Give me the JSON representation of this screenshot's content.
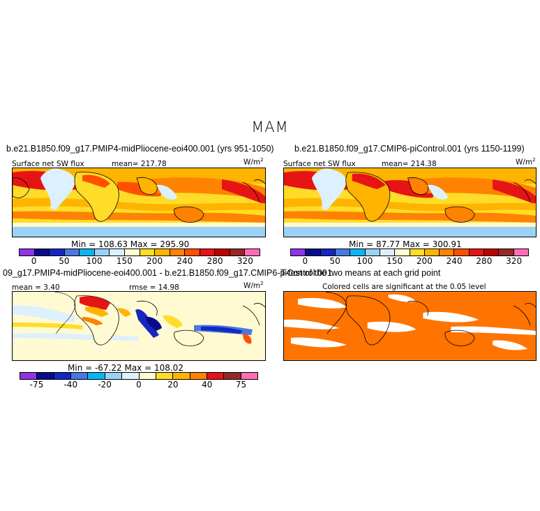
{
  "chart_data": [
    {
      "type": "heatmap",
      "figure_title": "MAM",
      "title": "b.e21.B1850.f09_g17.PMIP4-midPliocene-eoi400.001 (yrs 951-1050)",
      "left_label": "Surface net SW flux",
      "mean_label": "mean= 217.78",
      "units": "W/m",
      "units_sup": "2",
      "minmax_label": "Min = 108.63 Max = 295.90",
      "colorbar_ticks": [
        "0",
        "50",
        "100",
        "150",
        "200",
        "240",
        "280",
        "320"
      ],
      "colorbar_colors": [
        "#8f35e6",
        "#0a0a8c",
        "#1428c0",
        "#4a78e0",
        "#0ab4f0",
        "#9ad2f5",
        "#dcf0ff",
        "#fffad2",
        "#ffdc28",
        "#ffb400",
        "#ff8200",
        "#ff5000",
        "#e61414",
        "#be0000",
        "#962828",
        "#ff6eb4"
      ]
    },
    {
      "type": "heatmap",
      "title": "b.e21.B1850.f09_g17.CMIP6-piControl.001 (yrs 1150-1199)",
      "left_label": "Surface net SW flux",
      "mean_label": "mean= 214.38",
      "units": "W/m",
      "units_sup": "2",
      "minmax_label": "Min =  87.77 Max = 300.91",
      "colorbar_ticks": [
        "0",
        "50",
        "100",
        "150",
        "200",
        "240",
        "280",
        "320"
      ],
      "colorbar_colors": [
        "#8f35e6",
        "#0a0a8c",
        "#1428c0",
        "#4a78e0",
        "#0ab4f0",
        "#9ad2f5",
        "#dcf0ff",
        "#fffad2",
        "#ffdc28",
        "#ffb400",
        "#ff8200",
        "#ff5000",
        "#e61414",
        "#be0000",
        "#962828",
        "#ff6eb4"
      ]
    },
    {
      "type": "heatmap",
      "title": "09_g17.PMIP4-midPliocene-eoi400.001 - b.e21.B1850.f09_g17.CMIP6-piControl.001",
      "mean_label": "mean =   3.40",
      "rmse_label": "rmse =  14.98",
      "units": "W/m",
      "units_sup": "2",
      "minmax_label": "Min = -67.22 Max = 108.02",
      "colorbar_ticks": [
        "-75",
        "-40",
        "-20",
        "0",
        "20",
        "40",
        "75"
      ],
      "colorbar_colors": [
        "#8f35e6",
        "#0a0a8c",
        "#1428c0",
        "#4a78e0",
        "#0ab4f0",
        "#9ad2f5",
        "#dcf0ff",
        "#fffad2",
        "#ffdc28",
        "#ffb400",
        "#ff8200",
        "#e61414",
        "#962828",
        "#ff6eb4"
      ]
    },
    {
      "type": "heatmap",
      "title": "T-test of the two means at each grid point",
      "subtitle": "Colored cells are significant at the 0.05 level",
      "fill_color": "#ff7300"
    }
  ]
}
